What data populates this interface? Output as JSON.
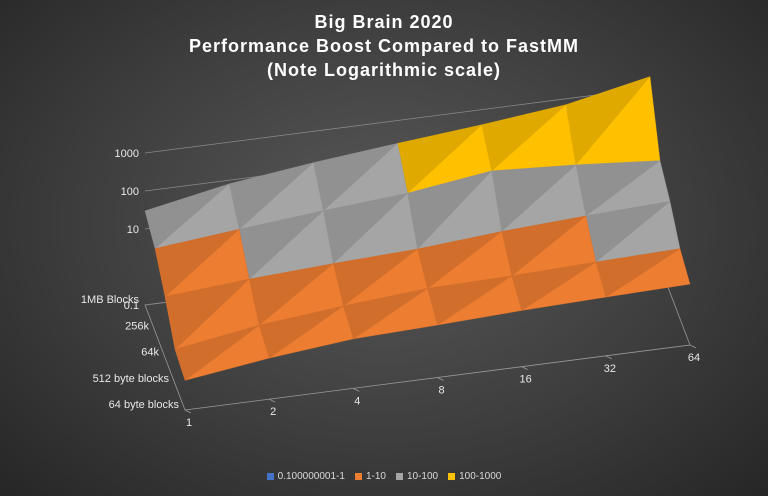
{
  "chart_data": {
    "type": "surface-3d",
    "title_lines": [
      "Big Brain 2020",
      "Performance Boost Compared to FastMM",
      "(Note Logarithmic scale)"
    ],
    "log_scale": true,
    "threads": [
      "1",
      "2",
      "4",
      "8",
      "16",
      "32",
      "64"
    ],
    "block_sizes": [
      "64 byte blocks",
      "512 byte blocks",
      "64k",
      "256k",
      "1MB Blocks"
    ],
    "z_ticks": [
      "0.1",
      "10",
      "100",
      "1000"
    ],
    "bands": [
      {
        "name": "0.100000001-1",
        "color": "#4472c4"
      },
      {
        "name": "1-10",
        "color": "#ed7d31"
      },
      {
        "name": "10-100",
        "color": "#a5a5a5"
      },
      {
        "name": "100-1000",
        "color": "#ffc000"
      }
    ],
    "values": [
      [
        0.6,
        1.2,
        2.0,
        2.4,
        3.0,
        3.5,
        4.0
      ],
      [
        0.8,
        1.8,
        3.0,
        4.5,
        5.0,
        6.0,
        7.0
      ],
      [
        4.0,
        6.0,
        8.0,
        10.0,
        15.0,
        20.0,
        25.0
      ],
      [
        15.0,
        25.0,
        40.0,
        60.0,
        120.0,
        90.0,
        60.0
      ],
      [
        30.0,
        80.0,
        150.0,
        250.0,
        400.0,
        700.0,
        2000.0
      ]
    ]
  }
}
